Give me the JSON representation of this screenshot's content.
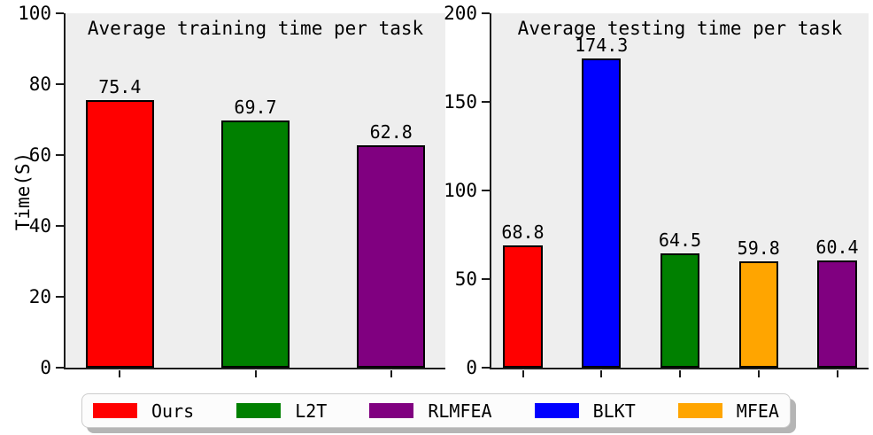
{
  "figure": {
    "background": "#ffffff",
    "plot_background": "#eeeeee",
    "axis_color": "#1c1c1c",
    "bar_edge_color": "#000000",
    "text_color": "#000000"
  },
  "legend": {
    "entries": [
      {
        "label": "Ours",
        "color": "#ff0000"
      },
      {
        "label": "L2T",
        "color": "#008000"
      },
      {
        "label": "RLMFEA",
        "color": "#800080"
      },
      {
        "label": "BLKT",
        "color": "#0000ff"
      },
      {
        "label": "MFEA",
        "color": "#ffa500"
      }
    ]
  },
  "chart_data": [
    {
      "type": "bar",
      "title": "Average training time per task",
      "ylabel": "Time(S)",
      "xlabel": "",
      "categories": [
        "Ours",
        "L2T",
        "RLMFEA"
      ],
      "values": [
        75.4,
        69.7,
        62.8
      ],
      "bar_labels": [
        "75.4",
        "69.7",
        "62.8"
      ],
      "colors": [
        "#ff0000",
        "#008000",
        "#800080"
      ],
      "ylim": [
        0,
        100
      ],
      "yticks": [
        0,
        20,
        40,
        60,
        80,
        100
      ],
      "grid": false,
      "legend_position": "bottom-of-figure"
    },
    {
      "type": "bar",
      "title": "Average testing time per task",
      "ylabel": "",
      "xlabel": "",
      "categories": [
        "Ours",
        "BLKT",
        "L2T",
        "MFEA",
        "RLMFEA"
      ],
      "values": [
        68.8,
        174.3,
        64.5,
        59.8,
        60.4
      ],
      "bar_labels": [
        "68.8",
        "174.3",
        "64.5",
        "59.8",
        "60.4"
      ],
      "colors": [
        "#ff0000",
        "#0000ff",
        "#008000",
        "#ffa500",
        "#800080"
      ],
      "ylim": [
        0,
        200
      ],
      "yticks": [
        0,
        50,
        100,
        150,
        200
      ],
      "grid": false,
      "legend_position": "bottom-of-figure"
    }
  ]
}
